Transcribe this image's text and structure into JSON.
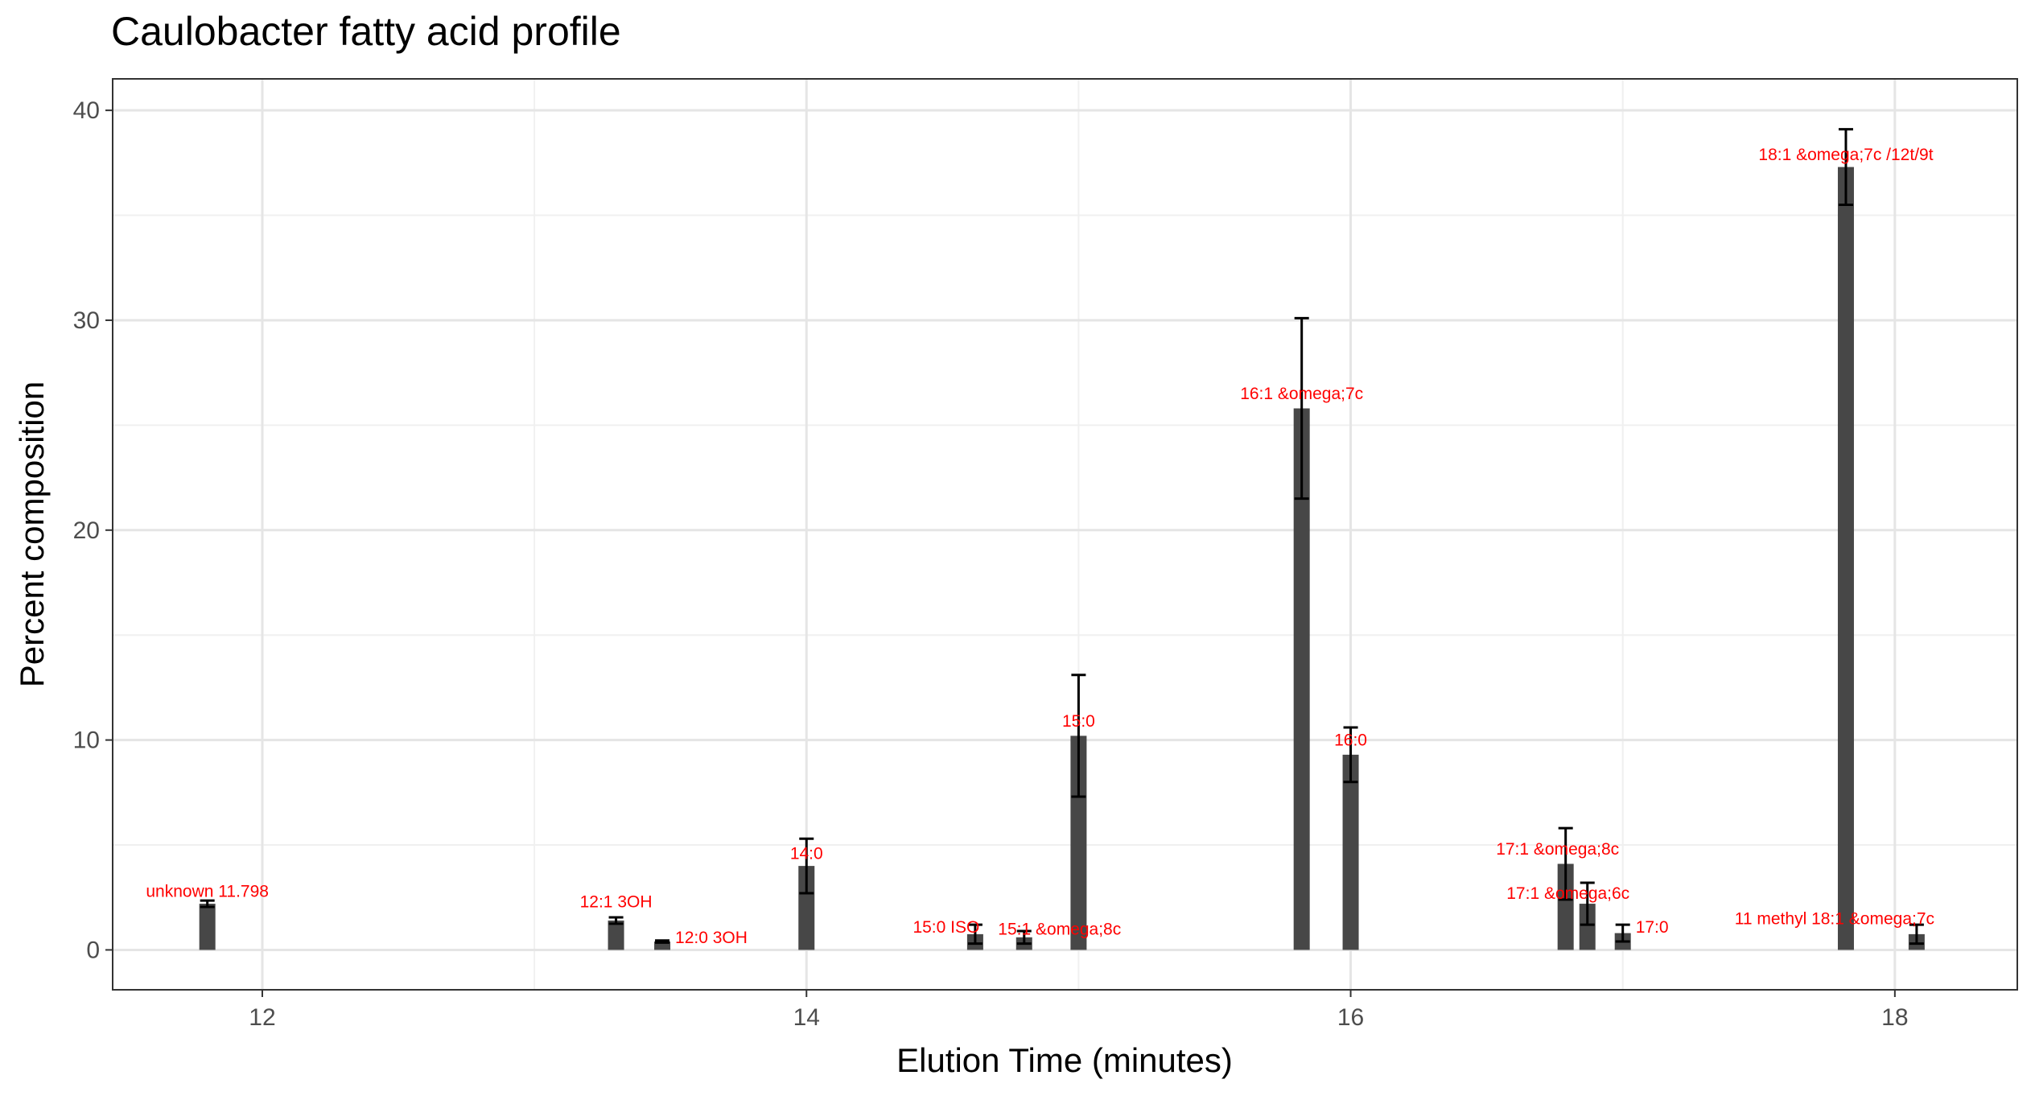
{
  "chart_data": {
    "type": "bar",
    "title": "Caulobacter fatty acid profile",
    "xlabel": "Elution Time (minutes)",
    "ylabel": "Percent composition",
    "xlim": [
      11.45,
      18.45
    ],
    "ylim": [
      -1.9,
      41.5
    ],
    "xticks": [
      12,
      14,
      16,
      18
    ],
    "yticks": [
      0,
      10,
      20,
      30,
      40
    ],
    "grid": true,
    "legend": "none",
    "colors": {
      "bar": "#474747",
      "error_bar": "#000000",
      "label": "#ff0000",
      "grid_major": "#e5e5e5",
      "grid_minor": "#f0f0f0",
      "panel_border": "#333333"
    },
    "points": [
      {
        "label": "unknown 11.798",
        "x": 11.798,
        "y": 2.2,
        "err": 0.15
      },
      {
        "label": "12:1 3OH",
        "x": 13.3,
        "y": 1.4,
        "err": 0.15
      },
      {
        "label": "12:0 3OH",
        "x": 13.47,
        "y": 0.4,
        "err": 0.05
      },
      {
        "label": "14:0",
        "x": 14.0,
        "y": 4.0,
        "err": 1.3
      },
      {
        "label": "15:0 ISO",
        "x": 14.62,
        "y": 0.75,
        "err": 0.45
      },
      {
        "label": "15:1 &omega;8c",
        "x": 14.8,
        "y": 0.6,
        "err": 0.3
      },
      {
        "label": "15:0",
        "x": 15.0,
        "y": 10.2,
        "err": 2.9
      },
      {
        "label": "16:1 &omega;7c",
        "x": 15.82,
        "y": 25.8,
        "err": 4.3
      },
      {
        "label": "16:0",
        "x": 16.0,
        "y": 9.3,
        "err": 1.3
      },
      {
        "label": "17:1 &omega;8c",
        "x": 16.79,
        "y": 4.1,
        "err": 1.7
      },
      {
        "label": "17:1 &omega;6c",
        "x": 16.87,
        "y": 2.2,
        "err": 1.0
      },
      {
        "label": "17:0",
        "x": 17.0,
        "y": 0.8,
        "err": 0.4
      },
      {
        "label": "18:1 &omega;7c /12t/9t",
        "x": 17.82,
        "y": 37.3,
        "err": 1.8
      },
      {
        "label": "11 methyl 18:1 &omega;7c",
        "x": 18.08,
        "y": 0.75,
        "err": 0.45
      }
    ]
  }
}
